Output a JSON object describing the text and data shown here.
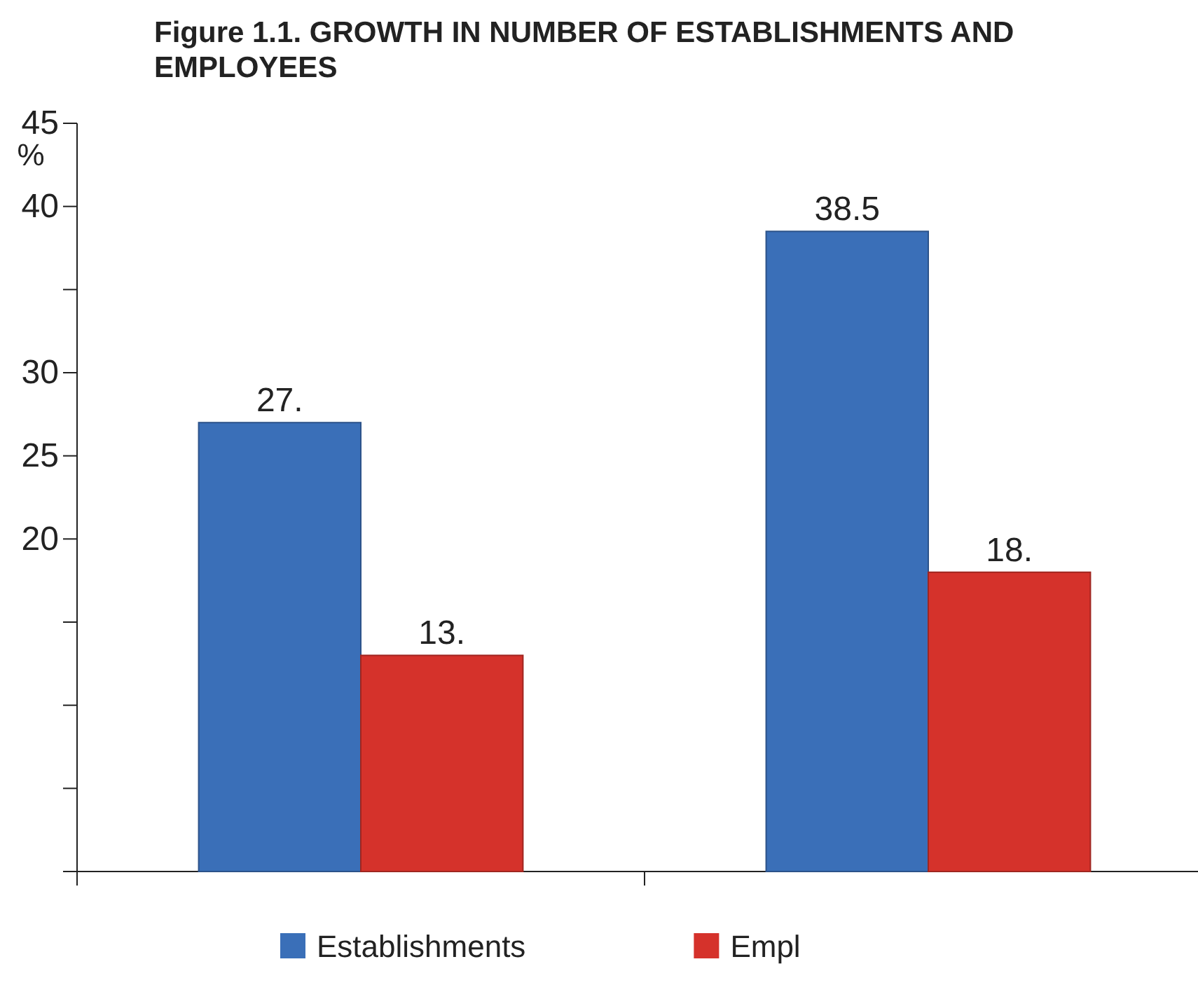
{
  "chart_data": {
    "type": "bar",
    "title": "Figure 1.1. GROWTH IN NUMBER OF ESTABLISHMENTS AND EMPLOYEES",
    "ylabel": "%",
    "categories": [
      null,
      null
    ],
    "series": [
      {
        "name": "Establishments",
        "color": "#3a6fb8",
        "values": [
          27,
          38.5
        ],
        "value_labels": [
          "27.",
          "38.5"
        ]
      },
      {
        "name": "Empl",
        "color": "#d5322b",
        "values": [
          13,
          18
        ],
        "value_labels": [
          "13.",
          "18."
        ]
      }
    ],
    "ylim": [
      0,
      45
    ],
    "yticks": [
      {
        "value": 0,
        "label": null
      },
      {
        "value": 5,
        "label": null
      },
      {
        "value": 10,
        "label": null
      },
      {
        "value": 15,
        "label": null
      },
      20,
      25,
      30,
      {
        "value": 35,
        "label": null
      },
      40,
      45
    ],
    "grid": false,
    "legend": "bottom"
  }
}
